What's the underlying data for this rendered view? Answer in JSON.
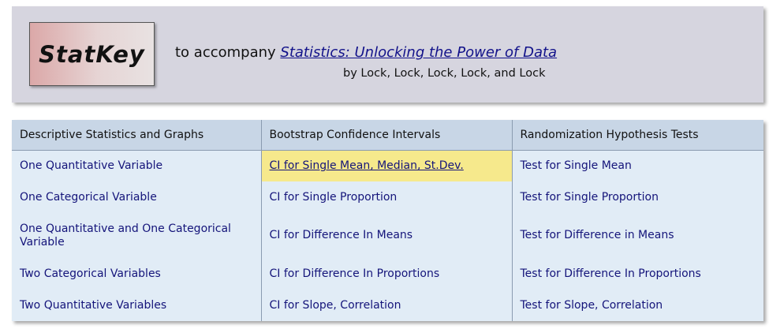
{
  "header": {
    "logo_text": "StatKey",
    "accompany_prefix": "to accompany",
    "book_title": "Statistics: Unlocking the Power of Data",
    "authors": "by Lock, Lock, Lock, Lock, and Lock"
  },
  "menu": {
    "columns": [
      "Descriptive Statistics and Graphs",
      "Bootstrap Confidence Intervals",
      "Randomization Hypothesis Tests"
    ],
    "rows": [
      [
        "One Quantitative Variable",
        "CI for Single Mean, Median, St.Dev.",
        "Test for Single Mean"
      ],
      [
        "One Categorical Variable",
        "CI for Single Proportion",
        "Test for Single Proportion"
      ],
      [
        "One Quantitative and One Categorical Variable",
        "CI for Difference In Means",
        "Test for Difference in Means"
      ],
      [
        "Two Categorical Variables",
        "CI for Difference In Proportions",
        "Test for Difference In Proportions"
      ],
      [
        "Two Quantitative Variables",
        "CI for Slope, Correlation",
        "Test for Slope, Correlation"
      ]
    ]
  },
  "colors": {
    "header_bg": "#d6d5df",
    "table_bg": "#e1ecf6",
    "table_header_bg": "#c8d6e6",
    "highlight": "#f6e98c",
    "link_text": "#14147a"
  }
}
